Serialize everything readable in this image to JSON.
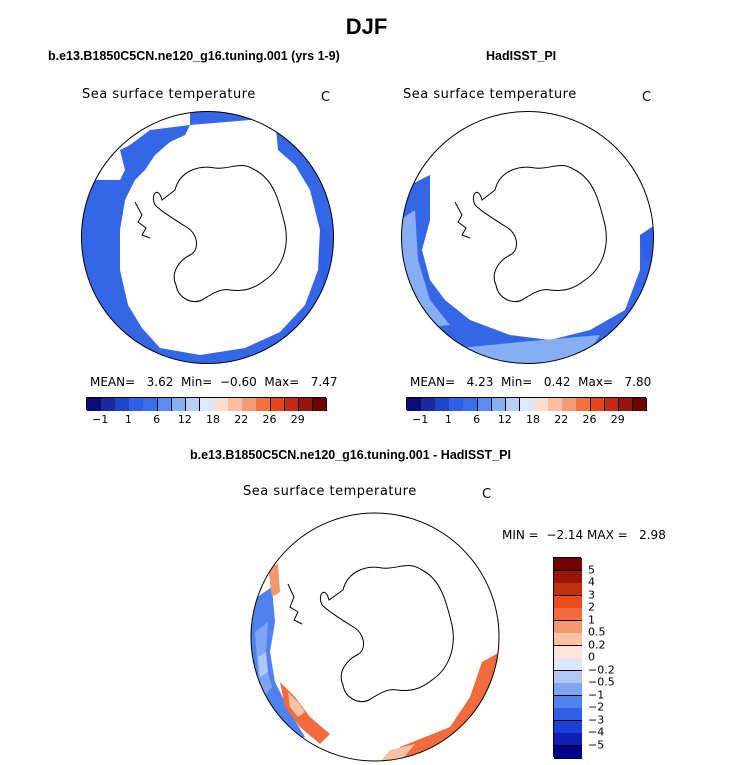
{
  "title": "DJF",
  "panels": [
    {
      "title": "b.e13.B1850C5CN.ne120_g16.tuning.001 (yrs 1-9)",
      "variable": "Sea surface temperature",
      "units": "C",
      "stats": {
        "mean_label": "MEAN=",
        "mean": "3.62",
        "min_label": "Min=",
        "min": "−0.60",
        "max_label": "Max=",
        "max": "7.47"
      }
    },
    {
      "title": "HadISST_PI",
      "variable": "Sea surface temperature",
      "units": "C",
      "stats": {
        "mean_label": "MEAN=",
        "mean": "4.23",
        "min_label": "Min=",
        "min": "0.42",
        "max_label": "Max=",
        "max": "7.80"
      }
    },
    {
      "title": "b.e13.B1850C5CN.ne120_g16.tuning.001 - HadISST_PI",
      "variable": "Sea surface temperature",
      "units": "C",
      "stats": {
        "min_label": "MIN =",
        "min": "−2.14",
        "max_label": "MAX =",
        "max": "2.98"
      }
    }
  ],
  "colorbar_abs": {
    "colors": [
      "#0a0a7a",
      "#1a2a9c",
      "#1e44c8",
      "#2f5fe6",
      "#3a6ee8",
      "#5a8ff0",
      "#86aef2",
      "#b6cff6",
      "#dde9fa",
      "#fbe0cc",
      "#f9c0a0",
      "#f79a74",
      "#f3703f",
      "#e8451e",
      "#c42a14",
      "#9a1208",
      "#6e0202"
    ],
    "tick_labels": [
      "−1",
      "1",
      "6",
      "12",
      "18",
      "22",
      "26",
      "29"
    ]
  },
  "colorbar_diff": {
    "colors": [
      "#00008b",
      "#0d1fb5",
      "#1c3fd6",
      "#2f5fe6",
      "#4f82ee",
      "#7ea4f2",
      "#b0c8f6",
      "#dbe7fb",
      "#fde6d6",
      "#f9c2a4",
      "#f5976e",
      "#f16b3c",
      "#e84b1c",
      "#c42e10",
      "#9b1406",
      "#6e0000"
    ],
    "tick_labels": [
      "5",
      "4",
      "3",
      "2",
      "1",
      "0.5",
      "0.2",
      "0",
      "−0.2",
      "−0.5",
      "−1",
      "−2",
      "−3",
      "−4",
      "−5"
    ]
  },
  "chart_data": [
    {
      "type": "heatmap",
      "title": "b.e13.B1850C5CN.ne120_g16.tuning.001 (yrs 1-9)",
      "variable": "Sea surface temperature",
      "units": "C",
      "season": "DJF",
      "projection": "south polar stereographic",
      "mean": 3.62,
      "min": -0.6,
      "max": 7.47,
      "contour_levels": [
        -1,
        1,
        6,
        12,
        18,
        22,
        26,
        29
      ]
    },
    {
      "type": "heatmap",
      "title": "HadISST_PI",
      "variable": "Sea surface temperature",
      "units": "C",
      "season": "DJF",
      "projection": "south polar stereographic",
      "mean": 4.23,
      "min": 0.42,
      "max": 7.8,
      "contour_levels": [
        -1,
        1,
        6,
        12,
        18,
        22,
        26,
        29
      ]
    },
    {
      "type": "heatmap",
      "title": "b.e13.B1850C5CN.ne120_g16.tuning.001 - HadISST_PI",
      "variable": "Sea surface temperature",
      "units": "C",
      "season": "DJF",
      "projection": "south polar stereographic",
      "min": -2.14,
      "max": 2.98,
      "contour_levels": [
        -5,
        -4,
        -3,
        -2,
        -1,
        -0.5,
        -0.2,
        0,
        0.2,
        0.5,
        1,
        2,
        3,
        4,
        5
      ]
    }
  ]
}
